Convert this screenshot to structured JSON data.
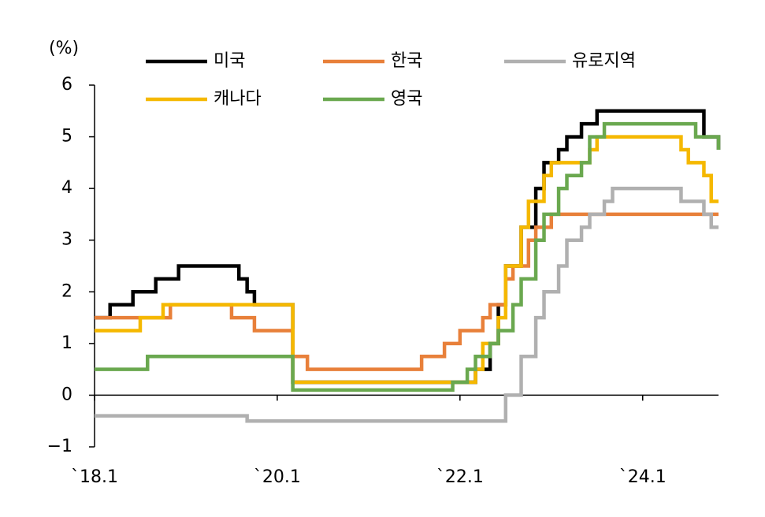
{
  "chart_data": {
    "type": "step",
    "ylabel": "(%)",
    "xlim": [
      2018,
      2024.83
    ],
    "ylim": [
      -1,
      6
    ],
    "xticks": [
      {
        "value": 2018,
        "label": "`18.1"
      },
      {
        "value": 2020,
        "label": "`20.1"
      },
      {
        "value": 2022,
        "label": "`22.1"
      },
      {
        "value": 2024,
        "label": "`24.1"
      }
    ],
    "yticks": [
      {
        "value": -1,
        "label": "−1"
      },
      0,
      1,
      2,
      3,
      4,
      5,
      6
    ],
    "series": [
      {
        "name": "미국",
        "color": "#000000",
        "x": [
          2018,
          2018.17,
          2018.42,
          2018.67,
          2018.92,
          2019.58,
          2019.67,
          2019.75,
          2020.17,
          2022.17,
          2022.33,
          2022.42,
          2022.5,
          2022.67,
          2022.83,
          2022.92,
          2023.08,
          2023.17,
          2023.33,
          2023.5,
          2024.67,
          2024.83
        ],
        "values": [
          1.5,
          1.75,
          2.0,
          2.25,
          2.5,
          2.25,
          2.0,
          1.75,
          0.25,
          0.5,
          1.0,
          1.75,
          2.5,
          3.25,
          4.0,
          4.5,
          4.75,
          5.0,
          5.25,
          5.5,
          5.0,
          4.75
        ]
      },
      {
        "name": "한국",
        "color": "#e8803a",
        "x": [
          2018,
          2018.83,
          2019.5,
          2019.75,
          2020.17,
          2020.33,
          2021.58,
          2021.83,
          2022.0,
          2022.25,
          2022.33,
          2022.5,
          2022.58,
          2022.75,
          2022.83,
          2023.0
        ],
        "values": [
          1.5,
          1.75,
          1.5,
          1.25,
          0.75,
          0.5,
          0.75,
          1.0,
          1.25,
          1.5,
          1.75,
          2.25,
          2.5,
          3.0,
          3.25,
          3.5
        ]
      },
      {
        "name": "유로지역",
        "color": "#b0b0b0",
        "x": [
          2018,
          2019.67,
          2022.5,
          2022.67,
          2022.83,
          2022.92,
          2023.08,
          2023.17,
          2023.33,
          2023.42,
          2023.58,
          2023.67,
          2024.42,
          2024.67,
          2024.75
        ],
        "values": [
          -0.4,
          -0.5,
          0,
          0.75,
          1.5,
          2.0,
          2.5,
          3.0,
          3.25,
          3.5,
          3.75,
          4.0,
          3.75,
          3.5,
          3.25
        ]
      },
      {
        "name": "캐나다",
        "color": "#f5b800",
        "x": [
          2018,
          2018.5,
          2018.75,
          2020.17,
          2022.17,
          2022.25,
          2022.42,
          2022.5,
          2022.67,
          2022.75,
          2022.92,
          2023.0,
          2023.42,
          2023.5,
          2024.42,
          2024.5,
          2024.67,
          2024.75
        ],
        "values": [
          1.25,
          1.5,
          1.75,
          0.25,
          0.5,
          1.0,
          1.5,
          2.5,
          3.25,
          3.75,
          4.25,
          4.5,
          4.75,
          5.0,
          4.75,
          4.5,
          4.25,
          3.75
        ]
      },
      {
        "name": "영국",
        "color": "#6aa84f",
        "x": [
          2018,
          2018.58,
          2020.17,
          2021.92,
          2022.08,
          2022.17,
          2022.33,
          2022.42,
          2022.58,
          2022.67,
          2022.83,
          2022.92,
          2023.08,
          2023.17,
          2023.33,
          2023.42,
          2023.58,
          2024.58,
          2024.83
        ],
        "values": [
          0.5,
          0.75,
          0.1,
          0.25,
          0.5,
          0.75,
          1.0,
          1.25,
          1.75,
          2.25,
          3.0,
          3.5,
          4.0,
          4.25,
          4.5,
          5.0,
          5.25,
          5.0,
          4.75
        ]
      }
    ]
  }
}
